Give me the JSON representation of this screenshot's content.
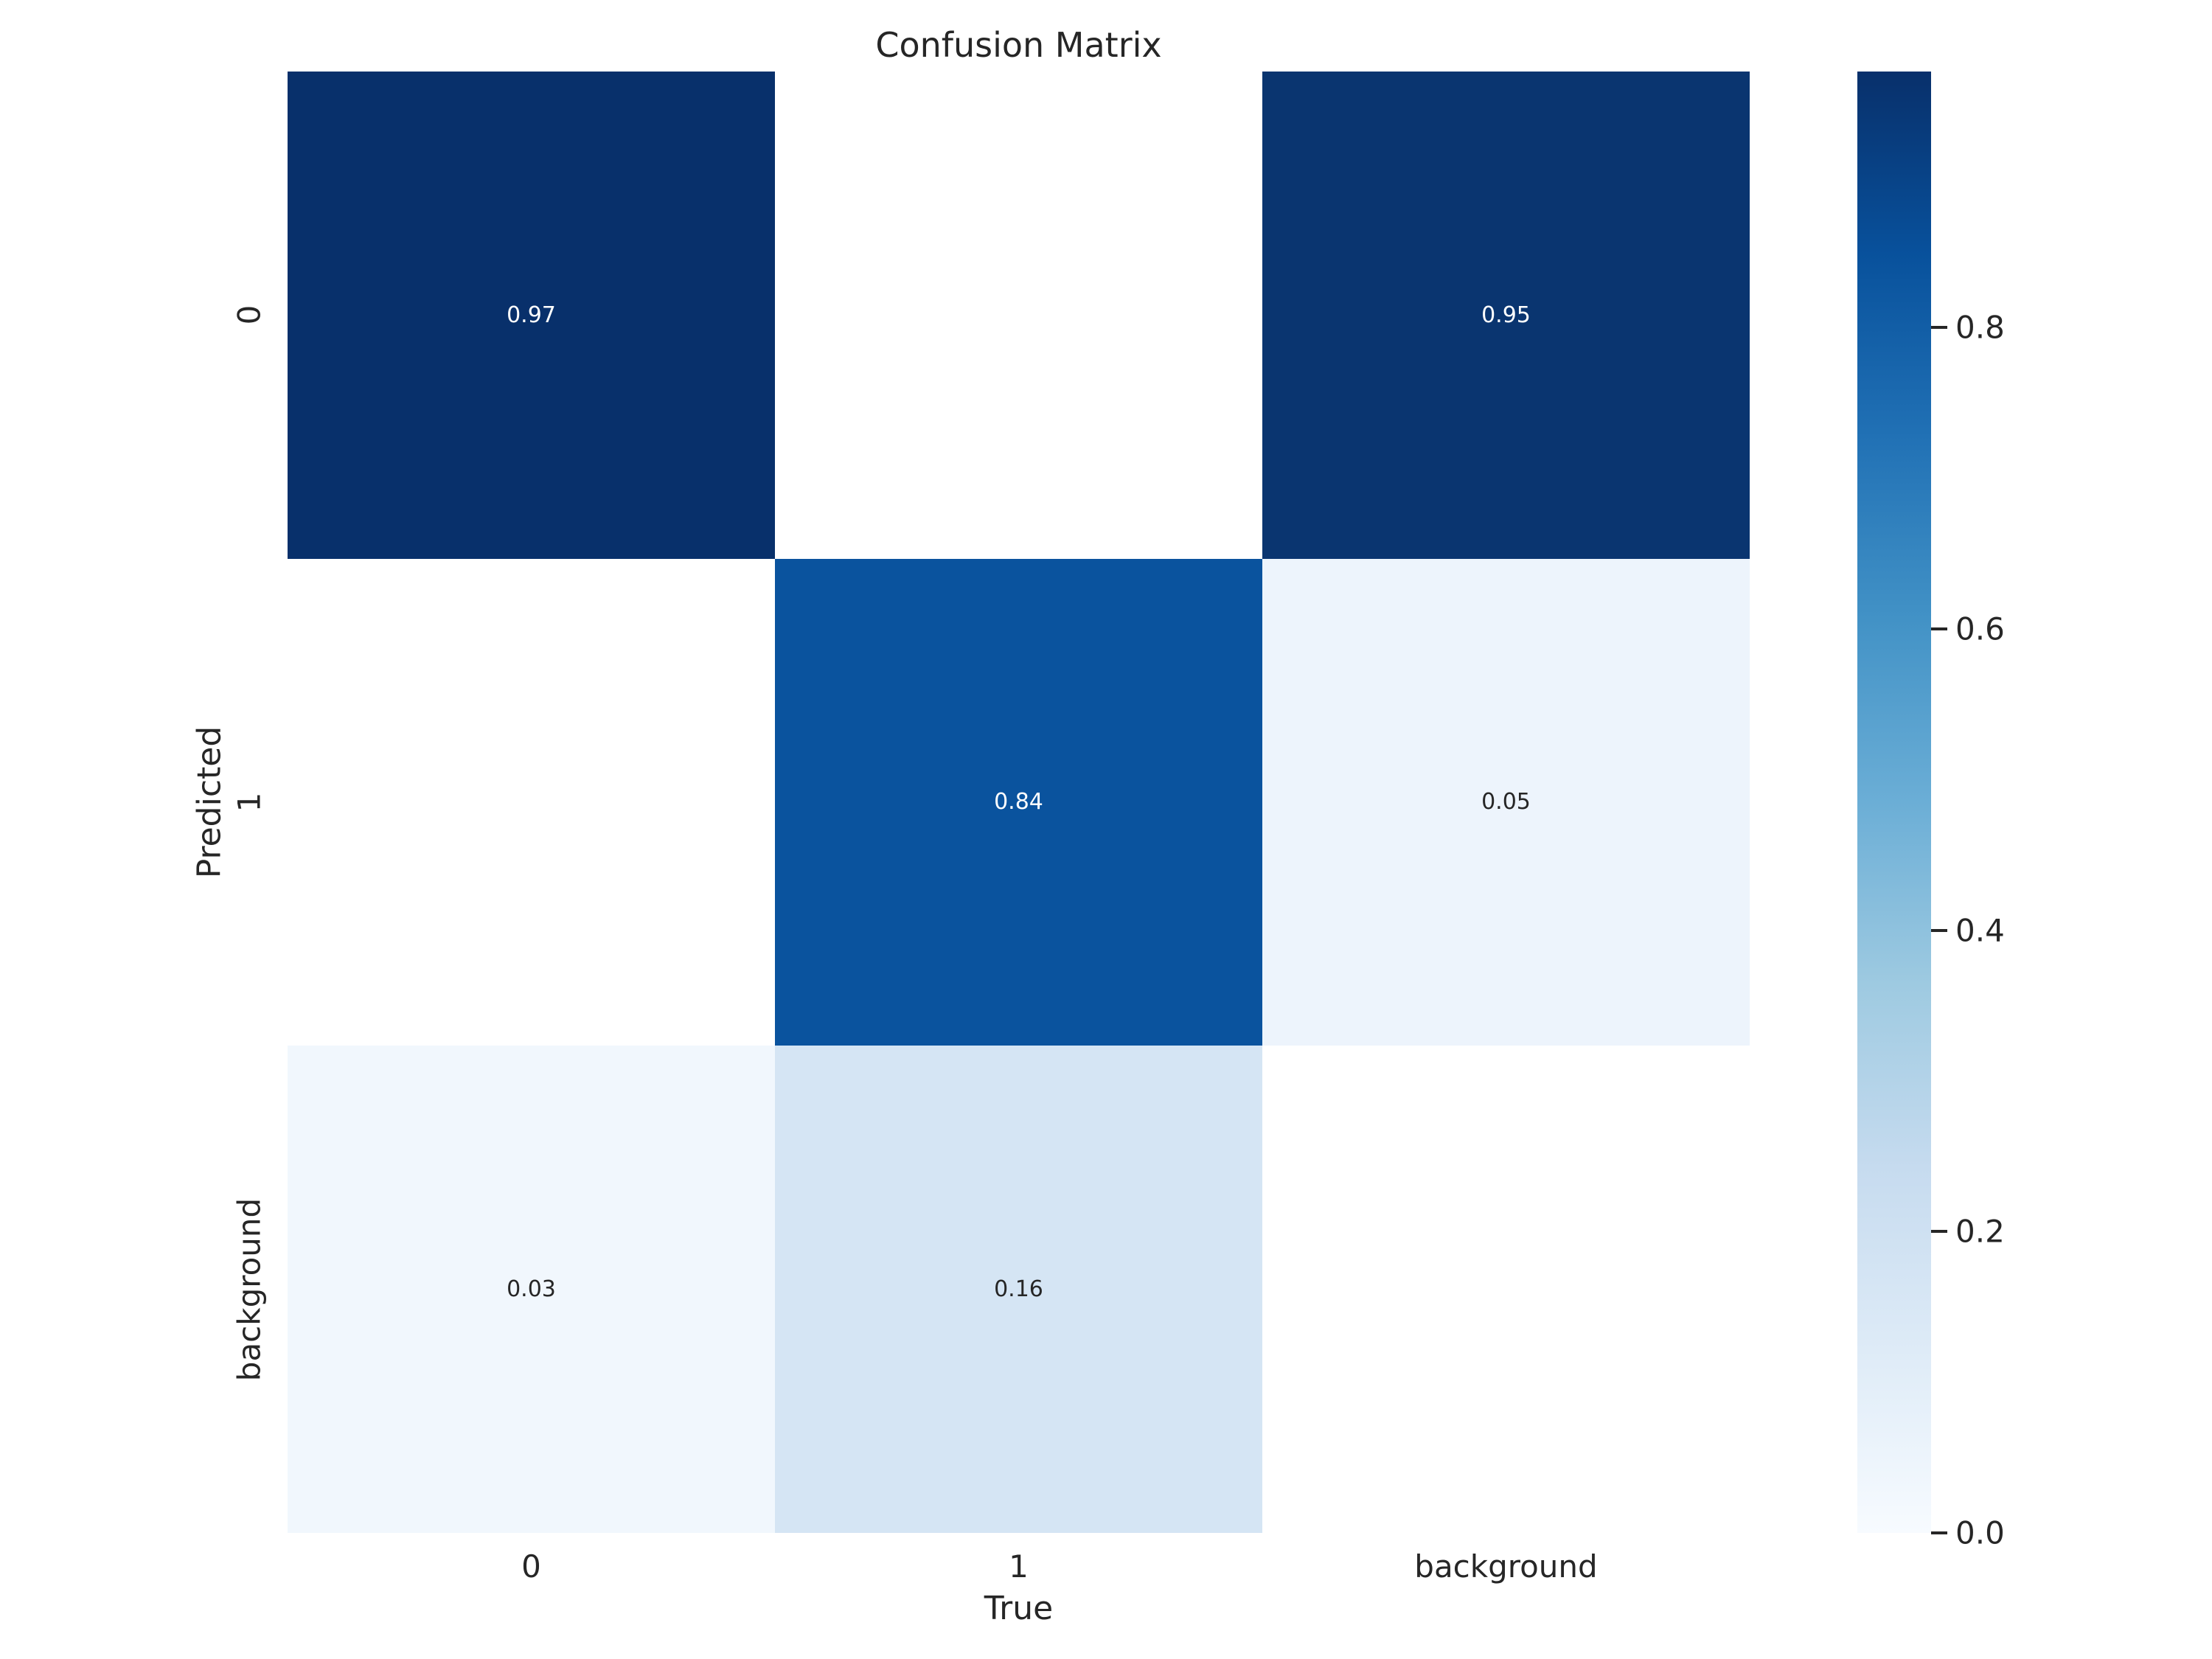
{
  "chart_data": {
    "type": "heatmap",
    "title": "Confusion Matrix",
    "xlabel": "True",
    "ylabel": "Predicted",
    "x_categories": [
      "0",
      "1",
      "background"
    ],
    "y_categories": [
      "0",
      "1",
      "background"
    ],
    "matrix": [
      [
        0.97,
        null,
        0.95
      ],
      [
        null,
        0.84,
        0.05
      ],
      [
        0.03,
        0.16,
        null
      ]
    ],
    "cells": [
      [
        {
          "value": 0.97,
          "label": "0.97",
          "bg": "#08306b",
          "fg": "#ffffff"
        },
        {
          "value": null,
          "label": "",
          "bg": "#ffffff",
          "fg": "#262626"
        },
        {
          "value": 0.95,
          "label": "0.95",
          "bg": "#0a3570",
          "fg": "#ffffff"
        }
      ],
      [
        {
          "value": null,
          "label": "",
          "bg": "#ffffff",
          "fg": "#262626"
        },
        {
          "value": 0.84,
          "label": "0.84",
          "bg": "#0a539e",
          "fg": "#ffffff"
        },
        {
          "value": 0.05,
          "label": "0.05",
          "bg": "#edf4fc",
          "fg": "#262626"
        }
      ],
      [
        {
          "value": 0.03,
          "label": "0.03",
          "bg": "#f1f7fd",
          "fg": "#262626"
        },
        {
          "value": 0.16,
          "label": "0.16",
          "bg": "#d5e5f4",
          "fg": "#262626"
        },
        {
          "value": null,
          "label": "",
          "bg": "#ffffff",
          "fg": "#262626"
        }
      ]
    ],
    "colormap": "Blues",
    "vmin": 0.0,
    "vmax": 0.97,
    "grid": false,
    "legend_position": "right-colorbar",
    "colorbar": {
      "ticks": [
        {
          "value": 0.0,
          "label": "0.0"
        },
        {
          "value": 0.2,
          "label": "0.2"
        },
        {
          "value": 0.4,
          "label": "0.4"
        },
        {
          "value": 0.6,
          "label": "0.6"
        },
        {
          "value": 0.8,
          "label": "0.8"
        }
      ],
      "gradient_stops_bottom_to_top": [
        "#f7fbff",
        "#deebf7",
        "#c6dbef",
        "#9ecae1",
        "#6baed6",
        "#4292c6",
        "#2171b5",
        "#08519c",
        "#08306b"
      ]
    },
    "colors": {
      "background": "#ffffff",
      "text": "#262626",
      "annot_light": "#ffffff"
    }
  }
}
